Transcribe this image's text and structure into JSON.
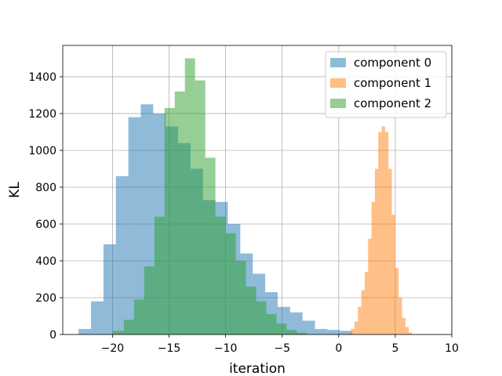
{
  "chart_data": {
    "type": "bar",
    "subtype": "histogram",
    "xlabel": "iteration",
    "ylabel": "KL",
    "xlim": [
      -24.4,
      10
    ],
    "ylim": [
      0,
      1570
    ],
    "xticks": [
      -20,
      -15,
      -10,
      -5,
      0,
      5,
      10
    ],
    "yticks": [
      0,
      200,
      400,
      600,
      800,
      1000,
      1200,
      1400
    ],
    "grid": true,
    "legend_position": "top-right",
    "series": [
      {
        "name": "component 0",
        "color": "#1f77b4",
        "alpha": 0.5,
        "bins": [
          {
            "x0": -23.0,
            "x1": -21.9,
            "count": 30
          },
          {
            "x0": -21.9,
            "x1": -20.8,
            "count": 180
          },
          {
            "x0": -20.8,
            "x1": -19.7,
            "count": 490
          },
          {
            "x0": -19.7,
            "x1": -18.6,
            "count": 860
          },
          {
            "x0": -18.6,
            "x1": -17.5,
            "count": 1180
          },
          {
            "x0": -17.5,
            "x1": -16.4,
            "count": 1250
          },
          {
            "x0": -16.4,
            "x1": -15.3,
            "count": 1200
          },
          {
            "x0": -15.3,
            "x1": -14.2,
            "count": 1130
          },
          {
            "x0": -14.2,
            "x1": -13.1,
            "count": 1040
          },
          {
            "x0": -13.1,
            "x1": -12.0,
            "count": 900
          },
          {
            "x0": -12.0,
            "x1": -10.9,
            "count": 730
          },
          {
            "x0": -10.9,
            "x1": -9.8,
            "count": 720
          },
          {
            "x0": -9.8,
            "x1": -8.7,
            "count": 600
          },
          {
            "x0": -8.7,
            "x1": -7.6,
            "count": 440
          },
          {
            "x0": -7.6,
            "x1": -6.5,
            "count": 330
          },
          {
            "x0": -6.5,
            "x1": -5.4,
            "count": 230
          },
          {
            "x0": -5.4,
            "x1": -4.3,
            "count": 150
          },
          {
            "x0": -4.3,
            "x1": -3.2,
            "count": 120
          },
          {
            "x0": -3.2,
            "x1": -2.1,
            "count": 75
          },
          {
            "x0": -2.1,
            "x1": -1.0,
            "count": 30
          },
          {
            "x0": -1.0,
            "x1": 0.1,
            "count": 25
          },
          {
            "x0": 0.1,
            "x1": 1.2,
            "count": 20
          }
        ]
      },
      {
        "name": "component 1",
        "color": "#ff7f0e",
        "alpha": 0.5,
        "bins": [
          {
            "x0": 0.8,
            "x1": 1.1,
            "count": 5
          },
          {
            "x0": 1.1,
            "x1": 1.4,
            "count": 30
          },
          {
            "x0": 1.4,
            "x1": 1.7,
            "count": 70
          },
          {
            "x0": 1.7,
            "x1": 2.0,
            "count": 150
          },
          {
            "x0": 2.0,
            "x1": 2.3,
            "count": 240
          },
          {
            "x0": 2.3,
            "x1": 2.6,
            "count": 340
          },
          {
            "x0": 2.6,
            "x1": 2.9,
            "count": 520
          },
          {
            "x0": 2.9,
            "x1": 3.2,
            "count": 720
          },
          {
            "x0": 3.2,
            "x1": 3.5,
            "count": 900
          },
          {
            "x0": 3.5,
            "x1": 3.8,
            "count": 1100
          },
          {
            "x0": 3.8,
            "x1": 4.1,
            "count": 1130
          },
          {
            "x0": 4.1,
            "x1": 4.4,
            "count": 1100
          },
          {
            "x0": 4.4,
            "x1": 4.7,
            "count": 900
          },
          {
            "x0": 4.7,
            "x1": 5.0,
            "count": 650
          },
          {
            "x0": 5.0,
            "x1": 5.3,
            "count": 360
          },
          {
            "x0": 5.3,
            "x1": 5.6,
            "count": 200
          },
          {
            "x0": 5.6,
            "x1": 5.9,
            "count": 90
          },
          {
            "x0": 5.9,
            "x1": 6.2,
            "count": 40
          },
          {
            "x0": 6.2,
            "x1": 6.5,
            "count": 10
          }
        ]
      },
      {
        "name": "component 2",
        "color": "#2ca02c",
        "alpha": 0.5,
        "bins": [
          {
            "x0": -20.0,
            "x1": -19.0,
            "count": 20
          },
          {
            "x0": -19.0,
            "x1": -18.1,
            "count": 80
          },
          {
            "x0": -18.1,
            "x1": -17.2,
            "count": 190
          },
          {
            "x0": -17.2,
            "x1": -16.3,
            "count": 370
          },
          {
            "x0": -16.3,
            "x1": -15.4,
            "count": 640
          },
          {
            "x0": -15.4,
            "x1": -14.5,
            "count": 1230
          },
          {
            "x0": -14.5,
            "x1": -13.6,
            "count": 1320
          },
          {
            "x0": -13.6,
            "x1": -12.7,
            "count": 1500
          },
          {
            "x0": -12.7,
            "x1": -11.8,
            "count": 1380
          },
          {
            "x0": -11.8,
            "x1": -10.9,
            "count": 960
          },
          {
            "x0": -10.9,
            "x1": -10.0,
            "count": 640
          },
          {
            "x0": -10.0,
            "x1": -9.1,
            "count": 550
          },
          {
            "x0": -9.1,
            "x1": -8.2,
            "count": 400
          },
          {
            "x0": -8.2,
            "x1": -7.3,
            "count": 260
          },
          {
            "x0": -7.3,
            "x1": -6.4,
            "count": 180
          },
          {
            "x0": -6.4,
            "x1": -5.5,
            "count": 110
          },
          {
            "x0": -5.5,
            "x1": -4.6,
            "count": 60
          },
          {
            "x0": -4.6,
            "x1": -3.7,
            "count": 25
          },
          {
            "x0": -3.7,
            "x1": -2.8,
            "count": 10
          }
        ]
      }
    ]
  }
}
